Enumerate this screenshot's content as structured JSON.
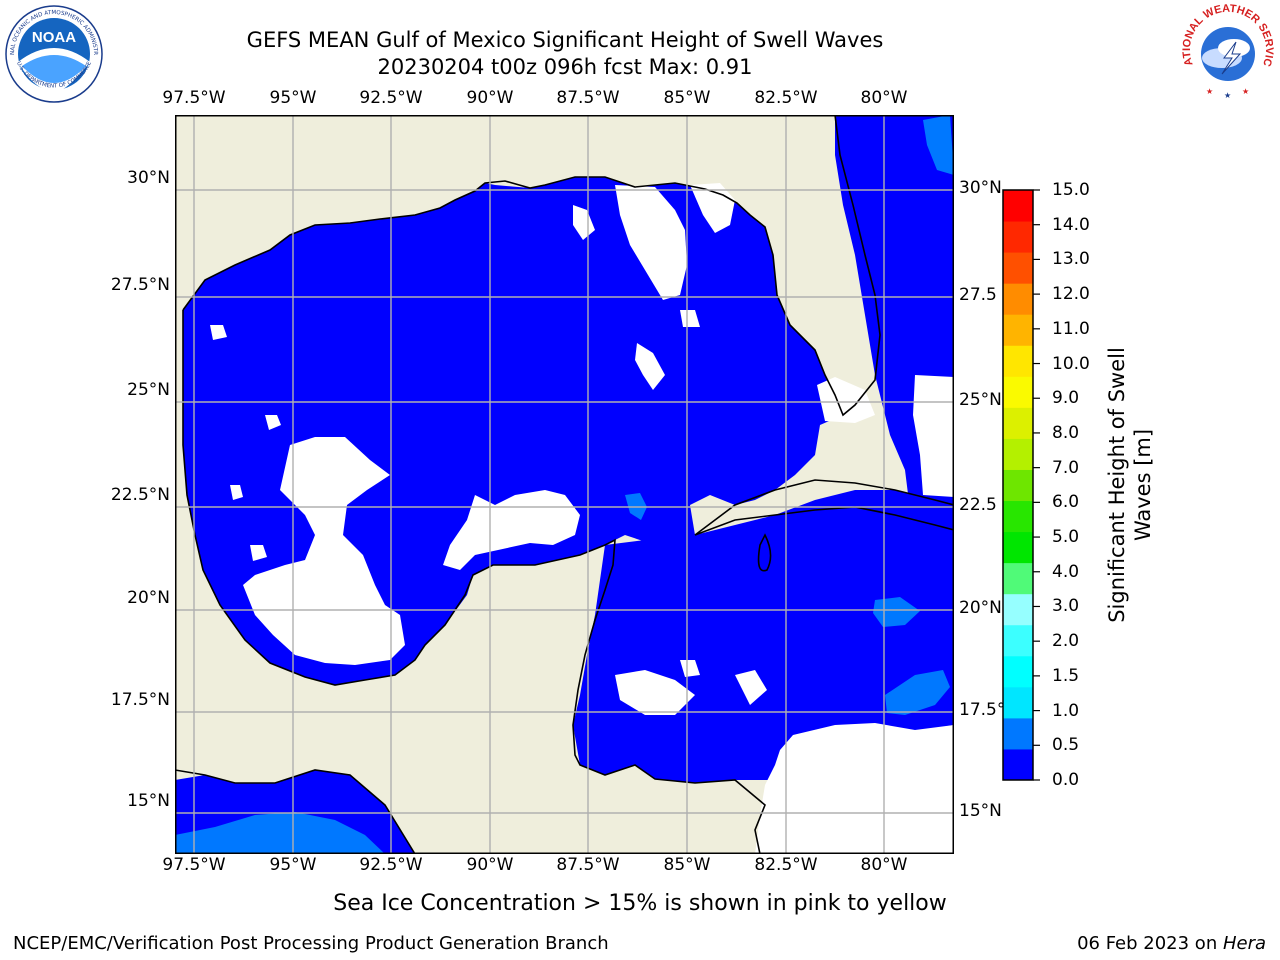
{
  "header": {
    "title_line1": "GEFS MEAN Gulf of Mexico Significant Height of Swell Waves",
    "title_line2": "20230204 t00z 096h fcst   Max: 0.91"
  },
  "map": {
    "lon_ticks": [
      "97.5°W",
      "95°W",
      "92.5°W",
      "90°W",
      "87.5°W",
      "85°W",
      "82.5°W",
      "80°W"
    ],
    "lat_ticks": [
      "30°N",
      "27.5°N",
      "25°N",
      "22.5°N",
      "20°N",
      "17.5°N",
      "15°N"
    ],
    "lat_ticks_right": [
      "30°N",
      "27.5",
      "25°N",
      "22.5",
      "20°N",
      "17.5°N",
      "15°N"
    ],
    "colors": {
      "land": "#efeedc",
      "ocean": "#0000ff",
      "ice_free": "#ffffff",
      "swell_low": "#0078ff"
    }
  },
  "colorbar": {
    "labels": [
      "15.0",
      "14.0",
      "13.0",
      "12.0",
      "11.0",
      "10.0",
      "9.0",
      "8.0",
      "7.0",
      "6.0",
      "5.0",
      "4.0",
      "3.0",
      "2.0",
      "1.5",
      "1.0",
      "0.5",
      "0.0"
    ],
    "colors": [
      "#0000ff",
      "#0078ff",
      "#00e6ff",
      "#00ffff",
      "#3cffff",
      "#96ffff",
      "#50fa78",
      "#00e600",
      "#28e600",
      "#6ee600",
      "#b4f000",
      "#dcf000",
      "#fafa00",
      "#ffe600",
      "#ffb400",
      "#ff8c00",
      "#ff5000",
      "#ff2800",
      "#ff0000"
    ],
    "title": "Significant Height of Swell Waves [m]"
  },
  "annotation": "Sea Ice Concentration > 15% is shown in pink to yellow",
  "footer": {
    "left": "NCEP/EMC/Verification Post Processing Product Generation Branch",
    "right_prefix": "06 Feb 2023 on ",
    "right_host": "Hera"
  },
  "logos": {
    "noaa": "NOAA",
    "noaa_ring": "NATIONAL OCEANIC AND ATMOSPHERIC ADMINISTRATION",
    "noaa_bottom": "U.S. DEPARTMENT OF COMMERCE",
    "nws_ring": "NATIONAL WEATHER SERVICE"
  }
}
